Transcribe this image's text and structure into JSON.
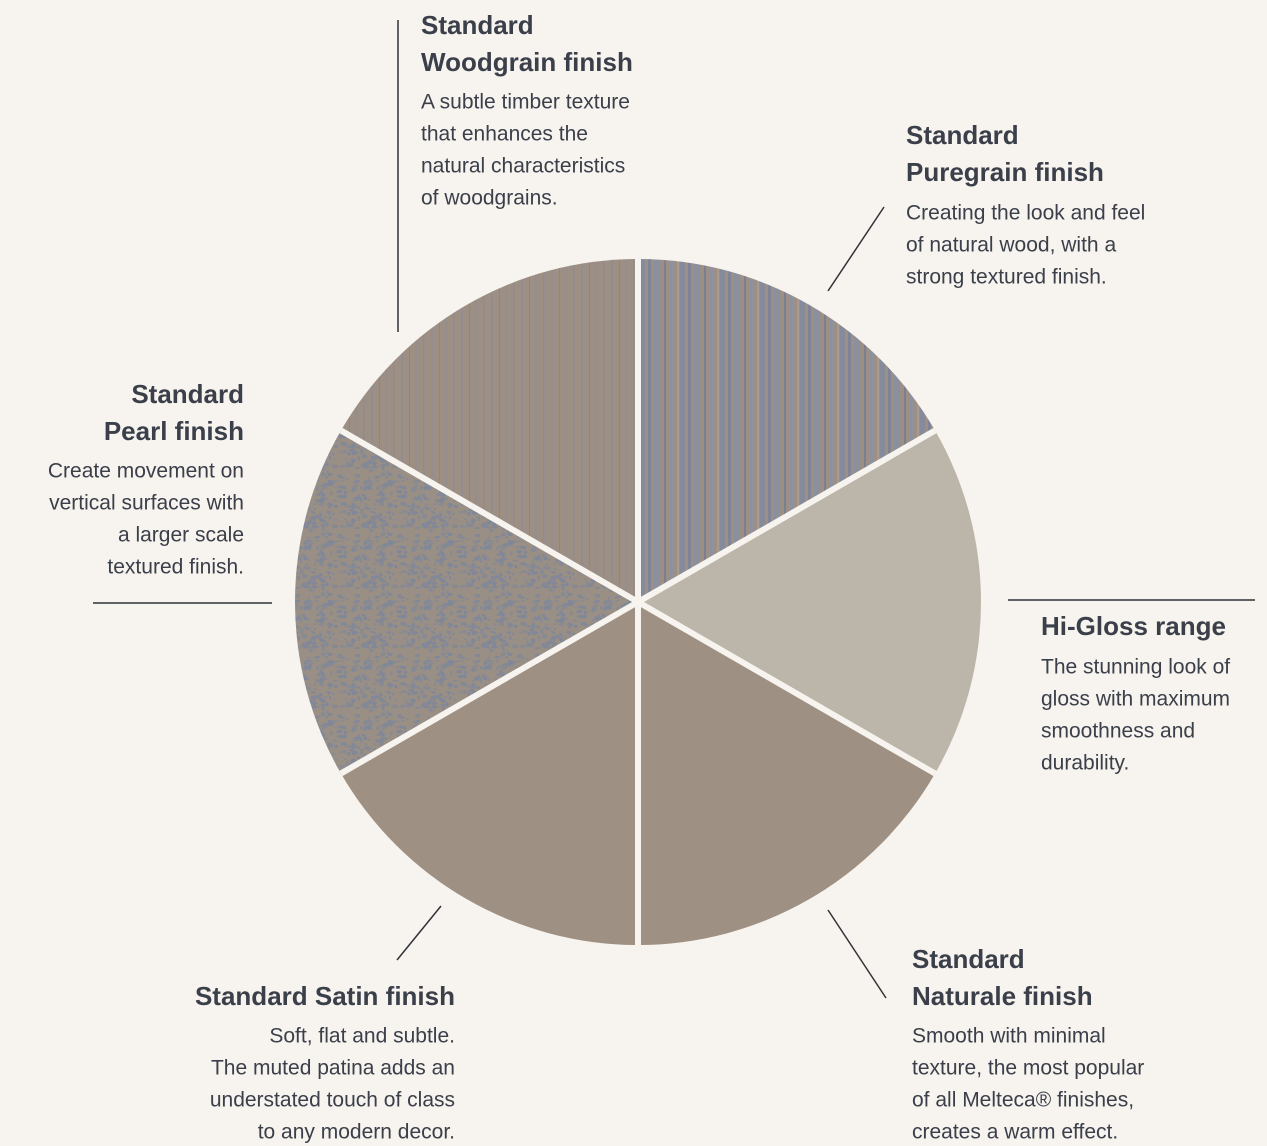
{
  "items": [
    {
      "title": [
        "Standard",
        "Woodgrain finish"
      ],
      "description": [
        "A subtle timber texture",
        "that enhances the",
        "natural characteristics",
        "of woodgrains."
      ]
    },
    {
      "title": [
        "Standard",
        "Puregrain finish"
      ],
      "description": [
        "Creating the look and feel",
        "of natural wood, with a",
        "strong textured finish."
      ]
    },
    {
      "title": [
        "Hi-Gloss range"
      ],
      "description": [
        "The stunning look of",
        "gloss with maximum",
        "smoothness and",
        "durability."
      ]
    },
    {
      "title": [
        "Standard",
        "Naturale finish"
      ],
      "description": [
        "Smooth with minimal",
        "texture, the most popular",
        "of all Melteca® finishes,",
        "creates a warm effect."
      ]
    },
    {
      "title": [
        "Standard Satin finish"
      ],
      "description": [
        "Soft, flat and subtle.",
        "The muted patina adds an",
        "understated touch of class",
        "to any modern decor."
      ]
    },
    {
      "title": [
        "Standard",
        "Pearl finish"
      ],
      "description": [
        "Create movement on",
        "vertical surfaces with",
        "a larger scale",
        "textured finish."
      ]
    }
  ]
}
